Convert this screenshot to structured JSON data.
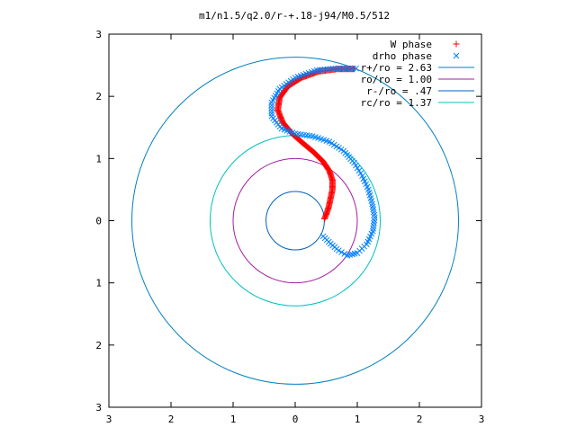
{
  "chart_data": {
    "type": "scatter",
    "title": "m1/n1.5/q2.0/r-+.18-j94/M0.5/512",
    "xlabel": "",
    "ylabel": "",
    "xlim": [
      -3,
      3
    ],
    "ylim": [
      -3,
      3
    ],
    "grid": false,
    "legend_position": "top-right",
    "x_tick_labels": [
      "3",
      "2",
      "1",
      "0",
      "1",
      "2",
      "3"
    ],
    "y_tick_labels": [
      "3",
      "2",
      "1",
      "0",
      "1",
      "2",
      "3"
    ],
    "x_ticks": [
      -3,
      -2,
      -1,
      0,
      1,
      2,
      3
    ],
    "y_ticks": [
      3,
      2,
      1,
      0,
      -1,
      -2,
      -3
    ],
    "circles": [
      {
        "name": "r+/ro = 2.63",
        "radius": 2.63,
        "color": "#0080c0"
      },
      {
        "name": "ro/ro = 1.00",
        "radius": 1.0,
        "color": "#a020a0"
      },
      {
        "name": "r-/ro = .47",
        "radius": 0.47,
        "color": "#0060c0"
      },
      {
        "name": "rc/ro = 1.37",
        "radius": 1.37,
        "color": "#00c0c0"
      }
    ],
    "series": [
      {
        "name": "W phase",
        "marker": "+",
        "color": "#ff0000",
        "points": [
          [
            0.47,
            0.03
          ],
          [
            0.5,
            0.1
          ],
          [
            0.54,
            0.22
          ],
          [
            0.57,
            0.36
          ],
          [
            0.6,
            0.5
          ],
          [
            0.6,
            0.65
          ],
          [
            0.55,
            0.8
          ],
          [
            0.45,
            0.95
          ],
          [
            0.3,
            1.1
          ],
          [
            0.12,
            1.25
          ],
          [
            -0.05,
            1.4
          ],
          [
            -0.2,
            1.58
          ],
          [
            -0.28,
            1.78
          ],
          [
            -0.25,
            1.98
          ],
          [
            -0.12,
            2.16
          ],
          [
            0.1,
            2.3
          ],
          [
            0.38,
            2.4
          ],
          [
            0.68,
            2.44
          ],
          [
            0.95,
            2.44
          ]
        ]
      },
      {
        "name": "drho phase",
        "marker": "x",
        "color": "#0080ff",
        "points": [
          [
            0.45,
            -0.25
          ],
          [
            0.57,
            -0.37
          ],
          [
            0.7,
            -0.48
          ],
          [
            0.84,
            -0.56
          ],
          [
            1.0,
            -0.52
          ],
          [
            1.15,
            -0.38
          ],
          [
            1.25,
            -0.17
          ],
          [
            1.28,
            0.05
          ],
          [
            1.24,
            0.27
          ],
          [
            1.18,
            0.5
          ],
          [
            1.08,
            0.72
          ],
          [
            0.95,
            0.93
          ],
          [
            0.78,
            1.12
          ],
          [
            0.55,
            1.27
          ],
          [
            0.28,
            1.36
          ],
          [
            0.0,
            1.4
          ],
          [
            -0.22,
            1.48
          ],
          [
            -0.38,
            1.68
          ],
          [
            -0.38,
            1.9
          ],
          [
            -0.25,
            2.12
          ],
          [
            0.0,
            2.3
          ],
          [
            0.35,
            2.42
          ],
          [
            0.7,
            2.45
          ],
          [
            0.98,
            2.45
          ]
        ]
      }
    ]
  }
}
